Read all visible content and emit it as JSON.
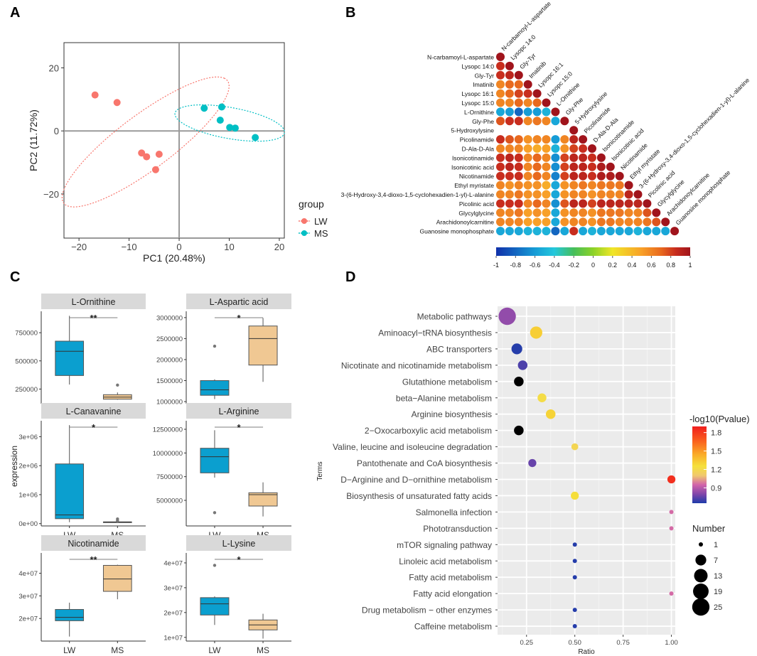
{
  "panel_labels": [
    "A",
    "B",
    "C",
    "D"
  ],
  "chart_data": [
    {
      "id": "A",
      "type": "scatter",
      "xlabel": "PC1 (20.48%)",
      "ylabel": "PC2 (11.72%)",
      "xlim": [
        -23,
        21
      ],
      "ylim": [
        -34,
        28
      ],
      "xticks": [
        -20,
        -10,
        0,
        10,
        20
      ],
      "yticks": [
        -20,
        0,
        20
      ],
      "xtick_labels": [
        "−20",
        "−10",
        "0",
        "10",
        "20"
      ],
      "ytick_labels": [
        "−20",
        "0",
        "20"
      ],
      "legend": {
        "title": "group",
        "entries": [
          "LW",
          "MS"
        ],
        "colors": [
          "#f8766d",
          "#00bfc4"
        ],
        "placement": "right"
      },
      "series": [
        {
          "name": "LW",
          "color": "#f8766d",
          "points": [
            [
              -16.8,
              11.4
            ],
            [
              -12.4,
              9
            ],
            [
              -7.5,
              -7
            ],
            [
              -6.5,
              -8.2
            ],
            [
              -4,
              -7.4
            ],
            [
              -4.7,
              -12.3
            ]
          ],
          "ellipse": {
            "cx": -6.7,
            "cy": -3.5,
            "rx": 25.6,
            "ry": 6.9,
            "angle": 52
          }
        },
        {
          "name": "MS",
          "color": "#00bfc4",
          "points": [
            [
              5,
              7.2
            ],
            [
              8.5,
              7.6
            ],
            [
              8.2,
              3.4
            ],
            [
              10.1,
              1.1
            ],
            [
              11.2,
              0.9
            ],
            [
              15.2,
              -2.1
            ]
          ],
          "ellipse": {
            "cx": 10.1,
            "cy": 2.5,
            "rx": 11.4,
            "ry": 4.8,
            "angle": -18
          }
        }
      ]
    },
    {
      "id": "B",
      "type": "heatmap",
      "subtype": "correlation-lower",
      "labels": [
        "N-carbamoyl-L-aspartate",
        "Lysopc 14:0",
        "Gly-Tyr",
        "Imatinib",
        "Lysopc 16:1",
        "Lysopc 15:0",
        "L-Ornithine",
        "Gly-Phe",
        "5-Hydroxylysine",
        "Picolinamide",
        "D-Ala-D-Ala",
        "Isonicotinamide",
        "Isonicotinic acid",
        "Nicotinamide",
        "Ethyl myristate",
        "3-(6-Hydroxy-3,4-dioxo-1,5-cyclohexadien-1-yl)-L-alanine",
        "Picolinic acid",
        "Glycylglycine",
        "Arachidonoylcarnitine",
        "Guanosine monophosphate"
      ],
      "values": [
        [
          1
        ],
        [
          0.85,
          1
        ],
        [
          0.85,
          0.9,
          1
        ],
        [
          0.6,
          0.7,
          0.7,
          1
        ],
        [
          0.6,
          0.7,
          0.8,
          0.85,
          1
        ],
        [
          0.6,
          0.6,
          0.7,
          0.6,
          0.7,
          1
        ],
        [
          -0.55,
          -0.6,
          -0.8,
          -0.6,
          -0.6,
          -0.5,
          1
        ],
        [
          0.75,
          0.85,
          0.85,
          0.6,
          0.65,
          0.6,
          -0.55,
          1
        ],
        [
          null,
          null,
          null,
          null,
          null,
          null,
          null,
          null,
          1
        ],
        [
          0.85,
          0.75,
          0.7,
          0.55,
          0.6,
          0.6,
          -0.6,
          0.6,
          0.9,
          1
        ],
        [
          0.6,
          0.6,
          0.6,
          0.5,
          0.45,
          0.5,
          -0.5,
          0.55,
          0.8,
          0.85,
          1
        ],
        [
          0.85,
          0.9,
          0.85,
          0.6,
          0.7,
          0.6,
          -0.65,
          0.8,
          0.9,
          0.9,
          0.85,
          1
        ],
        [
          0.85,
          0.9,
          0.85,
          0.6,
          0.7,
          0.6,
          -0.65,
          0.8,
          0.9,
          0.9,
          0.85,
          0.95,
          1
        ],
        [
          0.85,
          0.85,
          0.85,
          0.6,
          0.7,
          0.6,
          -0.7,
          0.8,
          0.9,
          0.9,
          0.85,
          0.95,
          0.95,
          1
        ],
        [
          0.6,
          0.55,
          0.6,
          0.55,
          0.55,
          0.45,
          -0.55,
          0.55,
          0.6,
          0.65,
          0.6,
          0.65,
          0.65,
          0.65,
          1
        ],
        [
          0.6,
          0.6,
          0.65,
          0.55,
          0.55,
          0.5,
          -0.55,
          0.55,
          0.6,
          0.6,
          0.55,
          0.6,
          0.6,
          0.6,
          0.9,
          1
        ],
        [
          0.85,
          0.85,
          0.85,
          0.6,
          0.7,
          0.6,
          -0.65,
          0.75,
          0.9,
          0.9,
          0.8,
          0.9,
          0.9,
          0.9,
          0.9,
          0.9,
          1
        ],
        [
          0.6,
          0.6,
          0.65,
          0.5,
          0.55,
          0.5,
          -0.55,
          0.55,
          0.6,
          0.6,
          0.55,
          0.65,
          0.65,
          0.65,
          0.6,
          0.6,
          0.75,
          1
        ],
        [
          0.6,
          0.6,
          0.6,
          0.5,
          0.5,
          0.5,
          -0.55,
          0.55,
          0.6,
          0.6,
          0.55,
          0.65,
          0.65,
          0.6,
          0.6,
          0.6,
          0.65,
          0.75,
          1
        ],
        [
          -0.55,
          -0.55,
          -0.55,
          -0.5,
          -0.5,
          -0.5,
          -0.8,
          -0.55,
          0.85,
          -0.55,
          -0.5,
          -0.55,
          -0.55,
          -0.55,
          -0.55,
          -0.5,
          -0.55,
          -0.55,
          -0.55,
          1
        ]
      ],
      "colorbar": {
        "range": [
          -1,
          1
        ],
        "ticks": [
          "-1",
          "-0.8",
          "-0.6",
          "-0.4",
          "-0.2",
          "0",
          "0.2",
          "0.4",
          "0.6",
          "0.8",
          "1"
        ]
      }
    },
    {
      "id": "C",
      "type": "box",
      "ylabel": "expression",
      "categories": [
        "LW",
        "MS"
      ],
      "colors": [
        "#0b9fcf",
        "#f0c893"
      ],
      "panels": [
        {
          "title": "L-Ornithine",
          "sig": "**",
          "ylim": [
            120000,
            940000
          ],
          "ticks": [
            250000,
            500000,
            750000
          ],
          "tick_labels": [
            "250000",
            "500000",
            "750000"
          ],
          "boxes": [
            {
              "min": 290000,
              "q1": 370000,
              "median": 585000,
              "q3": 675000,
              "max": 900000,
              "outliers": []
            },
            {
              "min": 155000,
              "q1": 160000,
              "median": 178000,
              "q3": 200000,
              "max": 220000,
              "outliers": [
                285000
              ]
            }
          ]
        },
        {
          "title": "L-Aspartic acid",
          "sig": "*",
          "ylim": [
            950000,
            3150000
          ],
          "ticks": [
            1000000,
            1500000,
            2000000,
            2500000,
            3000000
          ],
          "tick_labels": [
            "1000000",
            "1500000",
            "2000000",
            "2500000",
            "3000000"
          ],
          "boxes": [
            {
              "min": 1060000,
              "q1": 1150000,
              "median": 1280000,
              "q3": 1500000,
              "max": 1530000,
              "outliers": [
                2320000
              ]
            },
            {
              "min": 1470000,
              "q1": 1870000,
              "median": 2500000,
              "q3": 2800000,
              "max": 2990000,
              "outliers": []
            }
          ]
        },
        {
          "title": "L-Canavanine",
          "sig": "*",
          "ylim": [
            -80000,
            3550000
          ],
          "ticks": [
            0,
            1000000,
            2000000,
            3000000
          ],
          "tick_labels": [
            "0e+00",
            "1e+06",
            "2e+06",
            "3e+06"
          ],
          "boxes": [
            {
              "min": 50000,
              "q1": 170000,
              "median": 300000,
              "q3": 2060000,
              "max": 3400000,
              "outliers": []
            },
            {
              "min": 40000,
              "q1": 50000,
              "median": 55000,
              "q3": 60000,
              "max": 65000,
              "outliers": [
                100000,
                160000
              ]
            }
          ]
        },
        {
          "title": "L-Arginine",
          "sig": "*",
          "ylim": [
            2300000,
            13400000
          ],
          "ticks": [
            5000000,
            7500000,
            10000000,
            12500000
          ],
          "tick_labels": [
            "5000000",
            "7500000",
            "10000000",
            "12500000"
          ],
          "boxes": [
            {
              "min": 7400000,
              "q1": 7900000,
              "median": 9600000,
              "q3": 10500000,
              "max": 12400000,
              "outliers": [
                3700000
              ]
            },
            {
              "min": 3300000,
              "q1": 4400000,
              "median": 5600000,
              "q3": 5800000,
              "max": 6900000,
              "outliers": []
            }
          ]
        },
        {
          "title": "Nicotinamide",
          "sig": "**",
          "ylim": [
            10000000,
            49000000
          ],
          "ticks": [
            20000000,
            30000000,
            40000000
          ],
          "tick_labels": [
            "2e+07",
            "3e+07",
            "4e+07"
          ],
          "boxes": [
            {
              "min": 12000000,
              "q1": 19000000,
              "median": 20500000,
              "q3": 24000000,
              "max": 27000000,
              "outliers": []
            },
            {
              "min": 28500000,
              "q1": 32000000,
              "median": 37500000,
              "q3": 43500000,
              "max": 43800000,
              "outliers": []
            }
          ]
        },
        {
          "title": "L-Lysine",
          "sig": "*",
          "ylim": [
            8500000,
            44000000
          ],
          "ticks": [
            10000000,
            20000000,
            30000000,
            40000000
          ],
          "tick_labels": [
            "1e+07",
            "2e+07",
            "3e+07",
            "4e+07"
          ],
          "boxes": [
            {
              "min": 15000000,
              "q1": 19000000,
              "median": 23500000,
              "q3": 26000000,
              "max": 26500000,
              "outliers": [
                39000000
              ]
            },
            {
              "min": 9500000,
              "q1": 13000000,
              "median": 15000000,
              "q3": 17000000,
              "max": 19500000,
              "outliers": []
            }
          ]
        }
      ]
    },
    {
      "id": "D",
      "type": "scatter",
      "subtype": "bubble",
      "xlabel": "Ratio",
      "ylabel": "Terms",
      "xlim": [
        0.1,
        1.02
      ],
      "xticks": [
        0.25,
        0.5,
        0.75,
        1.0
      ],
      "xtick_labels": [
        "0.25",
        "0.50",
        "0.75",
        "1.00"
      ],
      "terms": [
        "Metabolic pathways",
        "Aminoacyl−tRNA biosynthesis",
        "ABC transporters",
        "Nicotinate and nicotinamide metabolism",
        "Glutathione metabolism",
        "beta−Alanine metabolism",
        "Arginine biosynthesis",
        "2−Oxocarboxylic acid metabolism",
        "Valine, leucine and isoleucine degradation",
        "Pantothenate and CoA biosynthesis",
        "D−Arginine and D−ornithine metabolism",
        "Biosynthesis of unsaturated fatty acids",
        "Salmonella infection",
        "Phototransduction",
        "mTOR signaling pathway",
        "Linoleic acid metabolism",
        "Fatty acid metabolism",
        "Fatty acid elongation",
        "Drug metabolism − other enzymes",
        "Caffeine metabolism"
      ],
      "ratio": [
        0.15,
        0.3,
        0.2,
        0.23,
        0.21,
        0.33,
        0.375,
        0.21,
        0.5,
        0.28,
        1.0,
        0.5,
        1.0,
        1.0,
        0.5,
        0.5,
        0.5,
        1.0,
        0.5,
        0.5
      ],
      "pvalue_log": [
        0.83,
        1.32,
        0.66,
        0.72,
        0.64,
        1.22,
        1.3,
        0.64,
        1.18,
        0.76,
        1.84,
        1.26,
        0.96,
        0.96,
        0.66,
        0.66,
        0.66,
        0.96,
        0.66,
        0.66
      ],
      "number": [
        25,
        10,
        7,
        5,
        5,
        4,
        5,
        5,
        2,
        3,
        3,
        3,
        1,
        1,
        1,
        1,
        1,
        1,
        1,
        1
      ],
      "color_legend": {
        "title": "-log10(Pvalue)",
        "ticks": [
          "0.9",
          "1.2",
          "1.5",
          "1.8"
        ],
        "range": [
          0.65,
          1.9
        ]
      },
      "size_legend": {
        "title": "Number",
        "entries": [
          "1",
          "7",
          "13",
          "19",
          "25"
        ]
      }
    }
  ]
}
